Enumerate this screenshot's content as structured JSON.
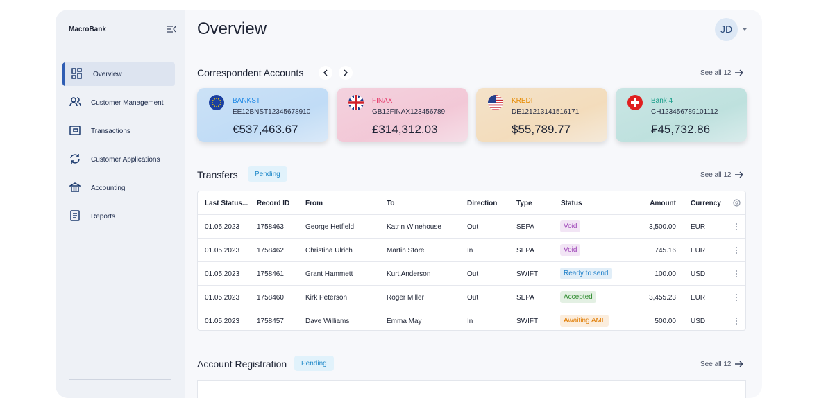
{
  "sidebar": {
    "brand": "MacroBank",
    "nav": [
      "Overview",
      "Customer Management",
      "Transactions",
      "Customer Applications",
      "Accounting",
      "Reports"
    ]
  },
  "header": {
    "title": "Overview",
    "avatar": "JD"
  },
  "accounts": {
    "title": "Correspondent Accounts",
    "see_all": "See all 12",
    "cards": [
      {
        "bank": "BANKST",
        "iban": "EE12BNST12345678910",
        "amount": "€537,463.67",
        "color": "#1e88e5"
      },
      {
        "bank": "FINAX",
        "iban": "GB12FINAX123456789",
        "amount": "£314,312.03",
        "color": "#e5396a"
      },
      {
        "bank": "KREDI",
        "iban": "DE121213141516171",
        "amount": "$55,789.77",
        "color": "#e68a00"
      },
      {
        "bank": "Bank 4",
        "iban": "CH123456789101112",
        "amount": "₣45,732.86",
        "color": "#159c88"
      }
    ]
  },
  "transfers": {
    "title": "Transfers",
    "badge": "Pending",
    "see_all": "See all 12",
    "columns": [
      "Last Status...",
      "Record ID",
      "From",
      "To",
      "Direction",
      "Type",
      "Status",
      "Amount",
      "Currency"
    ],
    "rows": [
      {
        "cells": [
          "01.05.2023",
          "1758463",
          "George Hetfield",
          "Katrin Winehouse",
          "Out",
          "SEPA",
          "Void",
          "3,500.00",
          "EUR"
        ],
        "status_color": "#9b3fb5"
      },
      {
        "cells": [
          "01.05.2023",
          "1758462",
          "Christina Ulrich",
          "Martin Store",
          "In",
          "SEPA",
          "Void",
          "745.16",
          "EUR"
        ],
        "status_color": "#9b3fb5"
      },
      {
        "cells": [
          "01.05.2023",
          "1758461",
          "Grant Hammett",
          "Kurt Anderson",
          "Out",
          "SWIFT",
          "Ready to send",
          "100.00",
          "USD"
        ],
        "status_color": "#1e7fc9"
      },
      {
        "cells": [
          "01.05.2023",
          "1758460",
          "Kirk Peterson",
          "Roger Miller",
          "Out",
          "SEPA",
          "Accepted",
          "3,455.23",
          "EUR"
        ],
        "status_color": "#2e8b2e"
      },
      {
        "cells": [
          "01.05.2023",
          "1758457",
          "Dave Williams",
          "Emma  May",
          "In",
          "SWIFT",
          "Awaiting AML",
          "500.00",
          "USD"
        ],
        "status_color": "#e07b00"
      }
    ]
  },
  "registration": {
    "title": "Account Registration",
    "badge": "Pending",
    "see_all": "See all 12"
  }
}
